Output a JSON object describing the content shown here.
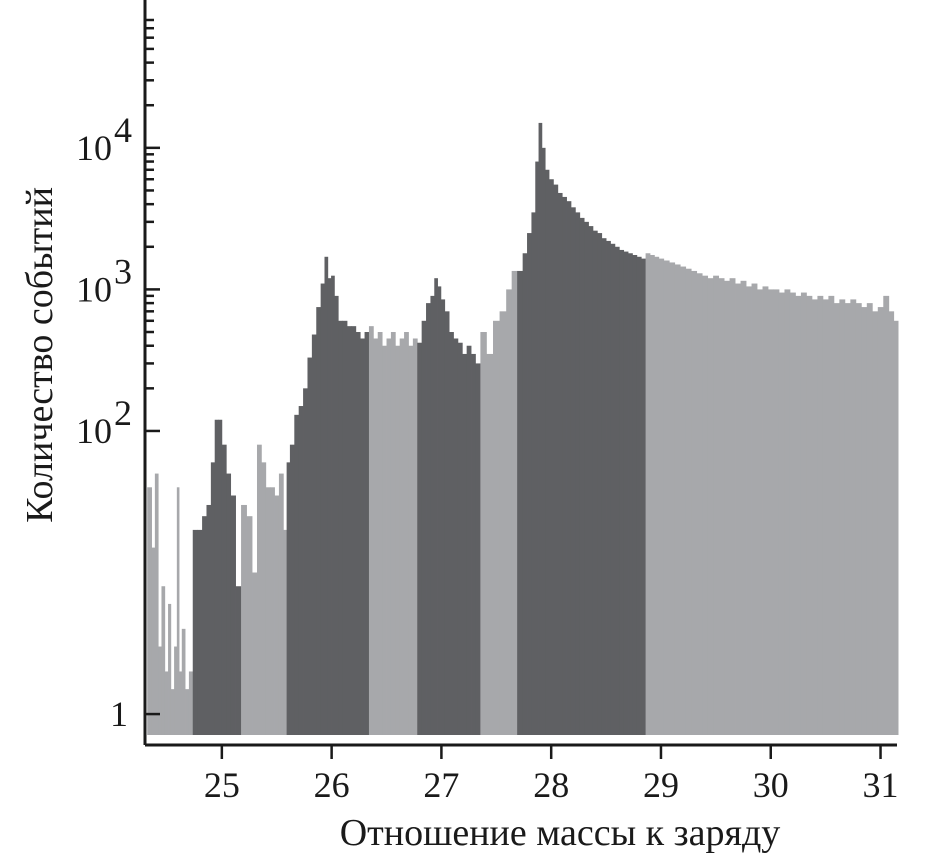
{
  "chart_data": {
    "type": "bar",
    "xlabel": "Отношение массы к заряду",
    "ylabel": "Количество событий",
    "scale": "log",
    "xlim": [
      24.3,
      31.15
    ],
    "ylim": [
      0.7,
      80000
    ],
    "x_ticks": [
      {
        "value": 25,
        "label": "25"
      },
      {
        "value": 26,
        "label": "26"
      },
      {
        "value": 27,
        "label": "27"
      },
      {
        "value": 28,
        "label": "28"
      },
      {
        "value": 29,
        "label": "29"
      },
      {
        "value": 30,
        "label": "30"
      },
      {
        "value": 31,
        "label": "31"
      }
    ],
    "y_ticks": [
      {
        "value": 1,
        "base": "1",
        "exp": ""
      },
      {
        "value": 100,
        "base": "10",
        "exp": "2"
      },
      {
        "value": 1000,
        "base": "10",
        "exp": "3"
      },
      {
        "value": 10000,
        "base": "10",
        "exp": "4"
      }
    ],
    "colors": {
      "light": "#a7a8ab",
      "dark": "#5f6063",
      "axis": "#1a1a1a"
    },
    "series": [
      {
        "values": [
          [
            24.34,
            40
          ],
          [
            24.38,
            15
          ],
          [
            24.4,
            50
          ],
          [
            24.44,
            3
          ],
          [
            24.46,
            8
          ],
          [
            24.5,
            2
          ],
          [
            24.52,
            6
          ],
          [
            24.55,
            1.5
          ],
          [
            24.58,
            3
          ],
          [
            24.6,
            40
          ],
          [
            24.62,
            2
          ],
          [
            24.65,
            4
          ],
          [
            24.68,
            1.5
          ],
          [
            24.72,
            2
          ],
          [
            24.75,
            20
          ],
          [
            24.8,
            20
          ],
          [
            24.84,
            25
          ],
          [
            24.88,
            30
          ],
          [
            24.92,
            60
          ],
          [
            24.95,
            120
          ],
          [
            24.98,
            120
          ],
          [
            25.02,
            80
          ],
          [
            25.06,
            50
          ],
          [
            25.1,
            35
          ],
          [
            25.15,
            8
          ],
          [
            25.2,
            30
          ],
          [
            25.25,
            25
          ],
          [
            25.3,
            10
          ],
          [
            25.34,
            80
          ],
          [
            25.38,
            60
          ],
          [
            25.42,
            40
          ],
          [
            25.46,
            40
          ],
          [
            25.5,
            35
          ],
          [
            25.54,
            50
          ],
          [
            25.58,
            20
          ],
          [
            25.6,
            60
          ],
          [
            25.64,
            80
          ],
          [
            25.68,
            130
          ],
          [
            25.72,
            150
          ],
          [
            25.76,
            200
          ],
          [
            25.8,
            330
          ],
          [
            25.84,
            480
          ],
          [
            25.88,
            750
          ],
          [
            25.92,
            1100
          ],
          [
            25.95,
            1700
          ],
          [
            25.98,
            1200
          ],
          [
            26.01,
            1250
          ],
          [
            26.04,
            900
          ],
          [
            26.08,
            600
          ],
          [
            26.12,
            600
          ],
          [
            26.16,
            550
          ],
          [
            26.2,
            550
          ],
          [
            26.24,
            500
          ],
          [
            26.28,
            450
          ],
          [
            26.32,
            500
          ],
          [
            26.36,
            550
          ],
          [
            26.4,
            450
          ],
          [
            26.44,
            500
          ],
          [
            26.48,
            400
          ],
          [
            26.52,
            450
          ],
          [
            26.56,
            500
          ],
          [
            26.6,
            400
          ],
          [
            26.64,
            450
          ],
          [
            26.68,
            500
          ],
          [
            26.72,
            400
          ],
          [
            26.76,
            450
          ],
          [
            26.8,
            420
          ],
          [
            26.84,
            600
          ],
          [
            26.88,
            800
          ],
          [
            26.92,
            900
          ],
          [
            26.95,
            1200
          ],
          [
            26.98,
            1050
          ],
          [
            27.01,
            850
          ],
          [
            27.05,
            700
          ],
          [
            27.09,
            500
          ],
          [
            27.13,
            450
          ],
          [
            27.17,
            420
          ],
          [
            27.21,
            350
          ],
          [
            27.25,
            400
          ],
          [
            27.29,
            350
          ],
          [
            27.33,
            300
          ],
          [
            27.38,
            500
          ],
          [
            27.44,
            350
          ],
          [
            27.5,
            600
          ],
          [
            27.56,
            700
          ],
          [
            27.62,
            1000
          ],
          [
            27.66,
            1350
          ],
          [
            27.72,
            1350
          ],
          [
            27.76,
            1800
          ],
          [
            27.8,
            2500
          ],
          [
            27.84,
            3500
          ],
          [
            27.87,
            8000
          ],
          [
            27.9,
            15000
          ],
          [
            27.93,
            10000
          ],
          [
            27.96,
            7000
          ],
          [
            28.0,
            6000
          ],
          [
            28.04,
            5500
          ],
          [
            28.08,
            4800
          ],
          [
            28.12,
            4500
          ],
          [
            28.16,
            4200
          ],
          [
            28.2,
            3800
          ],
          [
            28.24,
            3500
          ],
          [
            28.28,
            3200
          ],
          [
            28.32,
            3000
          ],
          [
            28.36,
            2800
          ],
          [
            28.4,
            2600
          ],
          [
            28.44,
            2500
          ],
          [
            28.48,
            2300
          ],
          [
            28.52,
            2200
          ],
          [
            28.56,
            2100
          ],
          [
            28.6,
            2000
          ],
          [
            28.64,
            1900
          ],
          [
            28.68,
            1850
          ],
          [
            28.72,
            1800
          ],
          [
            28.76,
            1750
          ],
          [
            28.8,
            1700
          ],
          [
            28.84,
            1650
          ],
          [
            28.88,
            1800
          ],
          [
            28.92,
            1750
          ],
          [
            28.96,
            1700
          ],
          [
            29.0,
            1650
          ],
          [
            29.05,
            1600
          ],
          [
            29.1,
            1550
          ],
          [
            29.15,
            1500
          ],
          [
            29.2,
            1450
          ],
          [
            29.25,
            1400
          ],
          [
            29.3,
            1350
          ],
          [
            29.35,
            1300
          ],
          [
            29.4,
            1250
          ],
          [
            29.45,
            1200
          ],
          [
            29.5,
            1250
          ],
          [
            29.55,
            1200
          ],
          [
            29.6,
            1150
          ],
          [
            29.65,
            1200
          ],
          [
            29.7,
            1100
          ],
          [
            29.75,
            1150
          ],
          [
            29.8,
            1050
          ],
          [
            29.85,
            1100
          ],
          [
            29.9,
            1000
          ],
          [
            29.95,
            1050
          ],
          [
            30.0,
            1000
          ],
          [
            30.05,
            1000
          ],
          [
            30.1,
            950
          ],
          [
            30.15,
            1000
          ],
          [
            30.2,
            950
          ],
          [
            30.25,
            900
          ],
          [
            30.3,
            950
          ],
          [
            30.35,
            900
          ],
          [
            30.4,
            850
          ],
          [
            30.45,
            900
          ],
          [
            30.5,
            850
          ],
          [
            30.55,
            900
          ],
          [
            30.6,
            800
          ],
          [
            30.65,
            850
          ],
          [
            30.7,
            800
          ],
          [
            30.75,
            850
          ],
          [
            30.8,
            800
          ],
          [
            30.85,
            750
          ],
          [
            30.9,
            800
          ],
          [
            30.95,
            700
          ],
          [
            31.0,
            750
          ],
          [
            31.05,
            900
          ],
          [
            31.1,
            700
          ],
          [
            31.14,
            600
          ]
        ]
      }
    ],
    "dark_bands": [
      [
        24.75,
        25.15
      ],
      [
        25.6,
        26.32
      ],
      [
        26.8,
        27.33
      ],
      [
        27.68,
        28.84
      ]
    ]
  }
}
